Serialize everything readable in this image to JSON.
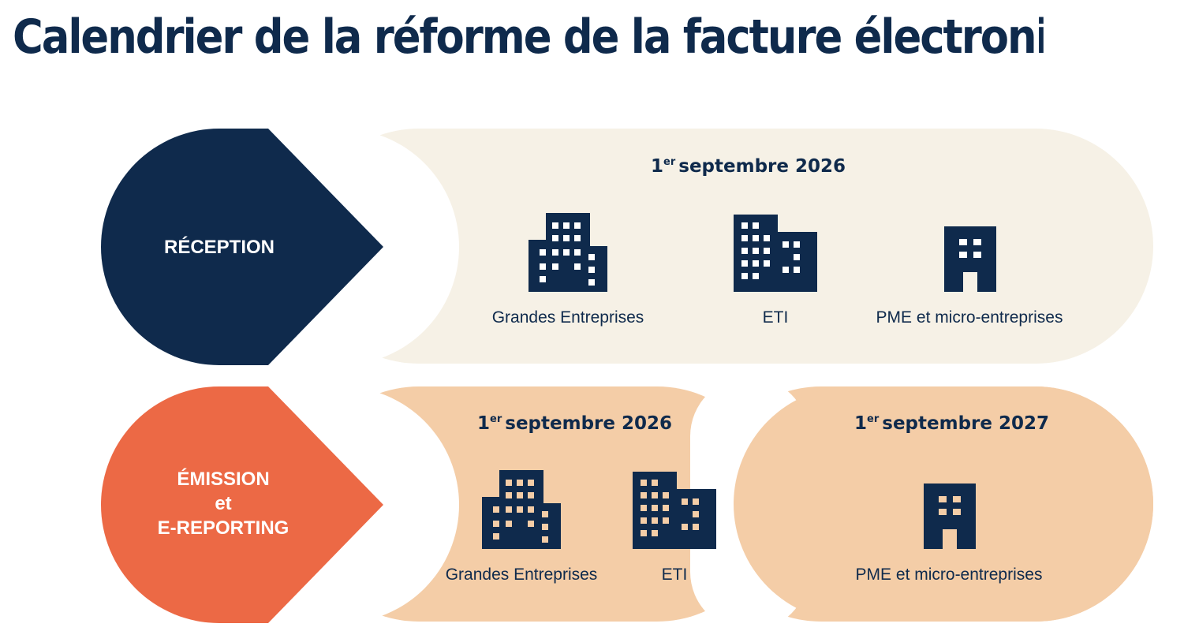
{
  "title": "Calendrier de la réforme de la facture électronique",
  "colors": {
    "navy": "#0f2a4c",
    "orange": "#ec6945",
    "cream": "#f6f1e6",
    "peach": "#f4cda7"
  },
  "reception": {
    "label": "RÉCEPTION",
    "date": {
      "num": "1",
      "sup": "er",
      "text": "septembre 2026"
    },
    "items": [
      {
        "label": "Grandes Entreprises",
        "icon": "large-building-icon"
      },
      {
        "label": "ETI",
        "icon": "mid-building-icon"
      },
      {
        "label": "PME et micro-entreprises",
        "icon": "small-building-icon"
      }
    ]
  },
  "emission": {
    "label_line1": "ÉMISSION",
    "label_line2": "et",
    "label_line3": "E-REPORTING",
    "phase1": {
      "date": {
        "num": "1",
        "sup": "er",
        "text": "septembre 2026"
      },
      "items": [
        {
          "label": "Grandes Entreprises",
          "icon": "large-building-icon"
        },
        {
          "label": "ETI",
          "icon": "mid-building-icon"
        }
      ]
    },
    "phase2": {
      "date": {
        "num": "1",
        "sup": "er",
        "text": "septembre 2027"
      },
      "items": [
        {
          "label": "PME et micro-entreprises",
          "icon": "small-building-icon"
        }
      ]
    }
  }
}
